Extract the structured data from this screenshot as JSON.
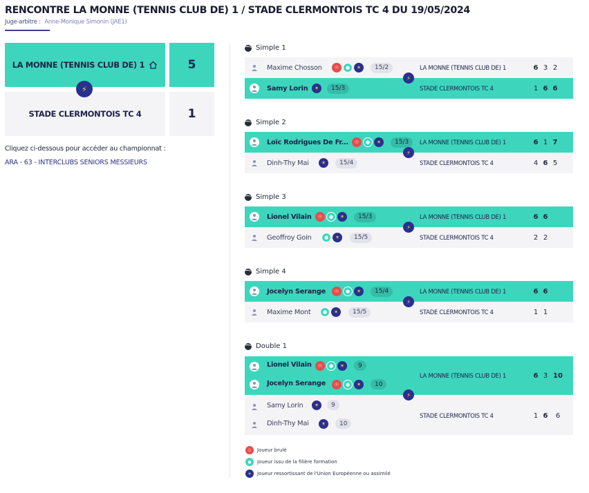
{
  "header": {
    "title": "RENCONTRE LA MONNE (TENNIS CLUB DE) 1 / STADE CLERMONTOIS TC 4 DU 19/05/2024",
    "referee_label": "Juge-arbitre :",
    "referee_name": "Anne-Monique Simonin (JAE1)"
  },
  "scoreboard": {
    "home_team": "LA MONNE (TENNIS CLUB DE) 1",
    "home_score": "5",
    "away_team": "STADE CLERMONTOIS TC 4",
    "away_score": "1"
  },
  "championship": {
    "intro": "Cliquez ci-dessous pour accéder au championnat :",
    "link": "ARA - 63 - INTERCLUBS SENIORS MESSIEURS"
  },
  "matches": [
    {
      "title": "Simple 1",
      "rows": [
        {
          "player": "Maxime Chosson",
          "rank": "15/2",
          "club": "LA MONNE (TENNIS CLUB DE) 1",
          "sets": [
            "6",
            "3",
            "2"
          ]
        },
        {
          "player": "Samy Lorin",
          "rank": "15/3",
          "club": "STADE CLERMONTOIS TC 4",
          "sets": [
            "1",
            "6",
            "6"
          ]
        }
      ]
    },
    {
      "title": "Simple 2",
      "rows": [
        {
          "player": "Loïc Rodrigues De Fr...",
          "rank": "15/3",
          "club": "LA MONNE (TENNIS CLUB DE) 1",
          "sets": [
            "6",
            "1",
            "7"
          ]
        },
        {
          "player": "Dinh-Thy Mai",
          "rank": "15/4",
          "club": "STADE CLERMONTOIS TC 4",
          "sets": [
            "4",
            "6",
            "5"
          ]
        }
      ]
    },
    {
      "title": "Simple 3",
      "rows": [
        {
          "player": "Lionel Vilain",
          "rank": "15/3",
          "club": "LA MONNE (TENNIS CLUB DE) 1",
          "sets": [
            "6",
            "6"
          ]
        },
        {
          "player": "Geoffroy Goin",
          "rank": "15/5",
          "club": "STADE CLERMONTOIS TC 4",
          "sets": [
            "2",
            "2"
          ]
        }
      ]
    },
    {
      "title": "Simple 4",
      "rows": [
        {
          "player": "Jocelyn Serange",
          "rank": "15/4",
          "club": "LA MONNE (TENNIS CLUB DE) 1",
          "sets": [
            "6",
            "6"
          ]
        },
        {
          "player": "Maxime Mont",
          "rank": "15/5",
          "club": "STADE CLERMONTOIS TC 4",
          "sets": [
            "1",
            "1"
          ]
        }
      ]
    },
    {
      "title": "Double 1",
      "home_players": [
        {
          "player": "Lionel Vilain",
          "rank": "9"
        },
        {
          "player": "Jocelyn Serange",
          "rank": "10"
        }
      ],
      "home_club": "LA MONNE (TENNIS CLUB DE) 1",
      "home_sets": [
        "6",
        "3",
        "10"
      ],
      "away_players": [
        {
          "player": "Samy Lorin",
          "rank": "9"
        },
        {
          "player": "Dinh-Thy Mai",
          "rank": "10"
        }
      ],
      "away_club": "STADE CLERMONTOIS TC 4",
      "away_sets": [
        "1",
        "6",
        "6"
      ]
    }
  ],
  "legend": [
    {
      "icon": "red-burned-icon",
      "text": "Joueur brulé"
    },
    {
      "icon": "teal-formation-icon",
      "text": "Joueur issu de la filière formation"
    },
    {
      "icon": "blue-eu-icon",
      "text": "Joueur ressortissant de l'Union Européenne ou assimilé"
    }
  ],
  "colors": {
    "winner_bg": "#3dd6bd",
    "loser_bg": "#f4f4f7",
    "accent_navy": "#2b2f8e",
    "burned_red": "#e74b4b"
  }
}
